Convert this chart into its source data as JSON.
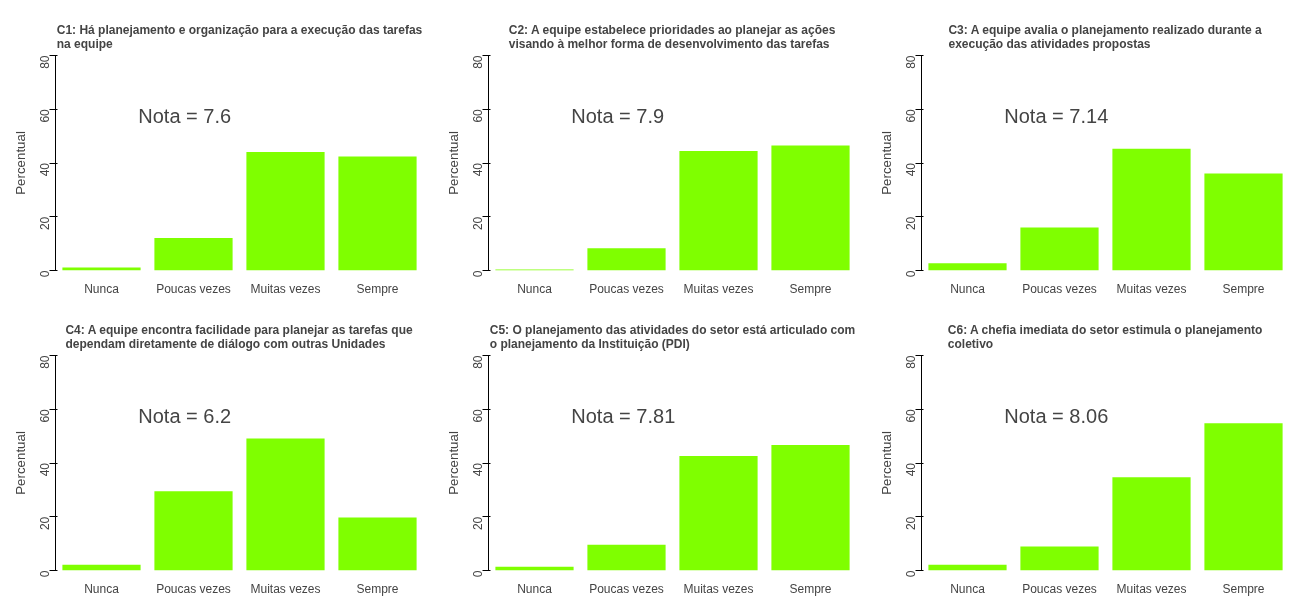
{
  "chart_data": [
    {
      "type": "bar",
      "title": "C1: Há planejamento e organização para a execução das tarefas na equipe",
      "ylabel": "Percentual",
      "categories": [
        "Nunca",
        "Poucas vezes",
        "Muitas vezes",
        "Sempre"
      ],
      "values": [
        1.1,
        12.1,
        44.1,
        42.4
      ],
      "color": "#7fff00",
      "ylim": [
        0,
        80
      ],
      "yticks": [
        0,
        20,
        40,
        60,
        80
      ],
      "grid": false,
      "annotations": [
        "Nota = 7.6"
      ]
    },
    {
      "type": "bar",
      "title": "C2: A equipe estabelece prioridades ao planejar as ações visando à melhor forma de desenvolvimento das tarefas",
      "ylabel": "Percentual",
      "categories": [
        "Nunca",
        "Poucas vezes",
        "Muitas vezes",
        "Sempre"
      ],
      "values": [
        0.4,
        8.3,
        44.5,
        46.5
      ],
      "color": "#7fff00",
      "ylim": [
        0,
        80
      ],
      "yticks": [
        0,
        20,
        40,
        60,
        80
      ],
      "grid": false,
      "annotations": [
        "Nota = 7.9"
      ]
    },
    {
      "type": "bar",
      "title": "C3: A equipe avalia o planejamento realizado durante a execução das atividades propostas",
      "ylabel": "Percentual",
      "categories": [
        "Nunca",
        "Poucas vezes",
        "Muitas vezes",
        "Sempre"
      ],
      "values": [
        2.7,
        16.0,
        45.3,
        36.1
      ],
      "color": "#7fff00",
      "ylim": [
        0,
        80
      ],
      "yticks": [
        0,
        20,
        40,
        60,
        80
      ],
      "grid": false,
      "annotations": [
        "Nota = 7.14"
      ]
    },
    {
      "type": "bar",
      "title": "C4: A equipe encontra facilidade para planejar as tarefas que dependam diretamente de diálogo com outras Unidades",
      "ylabel": "Percentual",
      "categories": [
        "Nunca",
        "Poucas vezes",
        "Muitas vezes",
        "Sempre"
      ],
      "values": [
        2.1,
        29.5,
        49.1,
        19.7
      ],
      "color": "#7fff00",
      "ylim": [
        0,
        80
      ],
      "yticks": [
        0,
        20,
        40,
        60,
        80
      ],
      "grid": false,
      "annotations": [
        "Nota = 6.2"
      ]
    },
    {
      "type": "bar",
      "title": "C5: O planejamento das atividades do setor está articulado com o planejamento da Instituição (PDI)",
      "ylabel": "Percentual",
      "categories": [
        "Nunca",
        "Poucas vezes",
        "Muitas vezes",
        "Sempre"
      ],
      "values": [
        1.4,
        9.6,
        42.6,
        46.7
      ],
      "color": "#7fff00",
      "ylim": [
        0,
        80
      ],
      "yticks": [
        0,
        20,
        40,
        60,
        80
      ],
      "grid": false,
      "annotations": [
        "Nota = 7.81"
      ]
    },
    {
      "type": "bar",
      "title": "C6: A chefia imediata do setor estimula o planejamento coletivo",
      "ylabel": "Percentual",
      "categories": [
        "Nunca",
        "Poucas vezes",
        "Muitas vezes",
        "Sempre"
      ],
      "values": [
        2.1,
        8.9,
        34.7,
        54.8
      ],
      "color": "#7fff00",
      "ylim": [
        0,
        80
      ],
      "yticks": [
        0,
        20,
        40,
        60,
        80
      ],
      "grid": false,
      "annotations": [
        "Nota = 8.06"
      ]
    }
  ]
}
